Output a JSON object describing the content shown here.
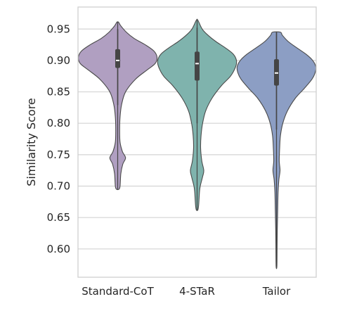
{
  "chart_data": {
    "type": "violin",
    "title": "",
    "xlabel": "",
    "ylabel": "Similarity Score",
    "ylim": [
      0.555,
      0.985
    ],
    "yticks": [
      0.6,
      0.65,
      0.7,
      0.75,
      0.8,
      0.85,
      0.9,
      0.95
    ],
    "ytick_labels": [
      "0.60",
      "0.65",
      "0.70",
      "0.75",
      "0.80",
      "0.85",
      "0.90",
      "0.95"
    ],
    "grid": true,
    "categories": [
      "Standard-CoT",
      "4-STaR",
      "Tailor"
    ],
    "series": [
      {
        "category": "Standard-CoT",
        "color": "#b09fc1",
        "min": 0.695,
        "max": 0.961,
        "q1": 0.888,
        "median": 0.9,
        "q3": 0.918,
        "whisker_low": 0.829,
        "whisker_high": 0.95,
        "density": [
          [
            0.695,
            0.03
          ],
          [
            0.7,
            0.06
          ],
          [
            0.72,
            0.08
          ],
          [
            0.735,
            0.13
          ],
          [
            0.745,
            0.2
          ],
          [
            0.755,
            0.12
          ],
          [
            0.77,
            0.06
          ],
          [
            0.79,
            0.05
          ],
          [
            0.81,
            0.06
          ],
          [
            0.83,
            0.1
          ],
          [
            0.85,
            0.2
          ],
          [
            0.87,
            0.45
          ],
          [
            0.885,
            0.75
          ],
          [
            0.895,
            0.95
          ],
          [
            0.905,
            1.0
          ],
          [
            0.915,
            0.92
          ],
          [
            0.925,
            0.7
          ],
          [
            0.935,
            0.42
          ],
          [
            0.945,
            0.22
          ],
          [
            0.955,
            0.08
          ],
          [
            0.961,
            0.02
          ]
        ]
      },
      {
        "category": "4-STaR",
        "color": "#7fb3ad",
        "min": 0.662,
        "max": 0.964,
        "q1": 0.868,
        "median": 0.895,
        "q3": 0.914,
        "whisker_low": 0.8,
        "whisker_high": 0.952,
        "density": [
          [
            0.662,
            0.02
          ],
          [
            0.67,
            0.04
          ],
          [
            0.69,
            0.06
          ],
          [
            0.7,
            0.08
          ],
          [
            0.715,
            0.14
          ],
          [
            0.725,
            0.17
          ],
          [
            0.74,
            0.12
          ],
          [
            0.76,
            0.09
          ],
          [
            0.78,
            0.1
          ],
          [
            0.8,
            0.14
          ],
          [
            0.82,
            0.22
          ],
          [
            0.84,
            0.38
          ],
          [
            0.86,
            0.62
          ],
          [
            0.875,
            0.85
          ],
          [
            0.89,
            0.98
          ],
          [
            0.9,
            1.0
          ],
          [
            0.91,
            0.92
          ],
          [
            0.92,
            0.72
          ],
          [
            0.93,
            0.48
          ],
          [
            0.94,
            0.28
          ],
          [
            0.95,
            0.13
          ],
          [
            0.964,
            0.02
          ]
        ]
      },
      {
        "category": "Tailor",
        "color": "#8c9ec4",
        "min": 0.572,
        "max": 0.945,
        "q1": 0.86,
        "median": 0.88,
        "q3": 0.902,
        "whisker_low": 0.79,
        "whisker_high": 0.945,
        "density": [
          [
            0.572,
            0.01
          ],
          [
            0.6,
            0.015
          ],
          [
            0.63,
            0.02
          ],
          [
            0.66,
            0.03
          ],
          [
            0.69,
            0.04
          ],
          [
            0.71,
            0.06
          ],
          [
            0.725,
            0.09
          ],
          [
            0.74,
            0.07
          ],
          [
            0.76,
            0.08
          ],
          [
            0.78,
            0.1
          ],
          [
            0.8,
            0.16
          ],
          [
            0.82,
            0.28
          ],
          [
            0.84,
            0.48
          ],
          [
            0.855,
            0.7
          ],
          [
            0.87,
            0.9
          ],
          [
            0.88,
            0.98
          ],
          [
            0.89,
            1.0
          ],
          [
            0.9,
            0.92
          ],
          [
            0.91,
            0.75
          ],
          [
            0.92,
            0.52
          ],
          [
            0.93,
            0.3
          ],
          [
            0.94,
            0.15
          ],
          [
            0.945,
            0.1
          ]
        ]
      }
    ]
  }
}
